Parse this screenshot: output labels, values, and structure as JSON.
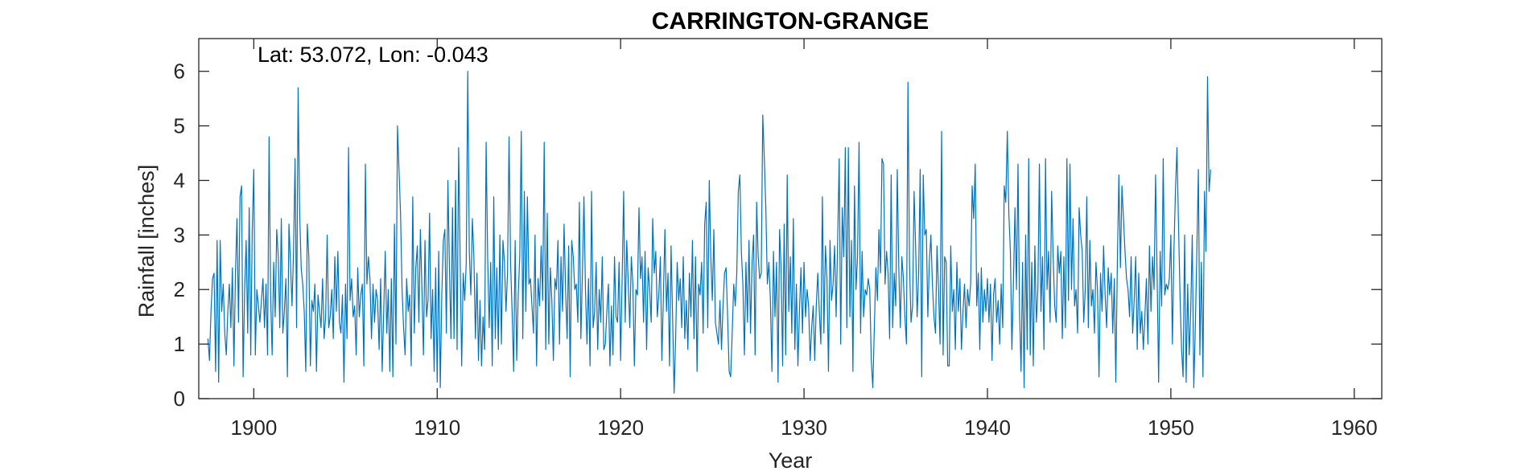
{
  "chart_data": {
    "type": "line",
    "title": "CARRINGTON-GRANGE",
    "annotation": "Lat: 53.072, Lon: -0.043",
    "xlabel": "Year",
    "ylabel": "Rainfall [inches]",
    "xlim": [
      1897,
      1961.5
    ],
    "ylim": [
      0,
      6.6
    ],
    "xticks": [
      1900,
      1910,
      1920,
      1930,
      1940,
      1950,
      1960
    ],
    "xtick_labels": [
      "1900",
      "1910",
      "1920",
      "1930",
      "1940",
      "1950",
      "1960"
    ],
    "yticks": [
      0,
      1,
      2,
      3,
      4,
      5,
      6
    ],
    "ytick_labels": [
      "0",
      "1",
      "2",
      "3",
      "4",
      "5",
      "6"
    ],
    "grid": false,
    "box": true,
    "series": [
      {
        "color": "#0072BD",
        "x_start": 1897.5,
        "x_step": 0.0833333,
        "values": [
          1.1,
          0.7,
          1.6,
          2.2,
          2.3,
          0.5,
          2.9,
          0.3,
          2.9,
          1.6,
          2.1,
          1.2,
          0.8,
          1.6,
          2.1,
          1.3,
          2.4,
          0.6,
          2.3,
          3.3,
          1.4,
          3.7,
          3.9,
          0.4,
          2.0,
          2.9,
          1.2,
          3.5,
          0.8,
          3.1,
          4.2,
          0.8,
          2.0,
          1.7,
          1.4,
          1.8,
          2.2,
          1.3,
          2.1,
          0.8,
          4.8,
          1.9,
          0.8,
          2.5,
          1.5,
          3.1,
          2.6,
          1.3,
          3.3,
          1.2,
          1.6,
          2.2,
          0.4,
          3.2,
          2.5,
          1.7,
          2.7,
          4.4,
          1.3,
          5.7,
          3.4,
          2.4,
          2.1,
          1.6,
          0.5,
          3.2,
          2.6,
          0.6,
          1.8,
          1.6,
          2.1,
          0.5,
          1.9,
          1.6,
          1.3,
          2.2,
          1.1,
          1.5,
          3.0,
          1.3,
          1.5,
          2.0,
          1.1,
          2.6,
          1.6,
          2.7,
          1.4,
          1.2,
          1.9,
          0.3,
          2.1,
          1.1,
          4.6,
          1.8,
          2.2,
          1.5,
          1.7,
          0.8,
          2.4,
          1.5,
          1.9,
          2.1,
          0.6,
          4.3,
          2.1,
          2.6,
          2.2,
          1.1,
          2.1,
          1.4,
          2.0,
          1.8,
          0.9,
          2.2,
          0.5,
          1.6,
          2.7,
          1.2,
          2.0,
          0.5,
          2.2,
          0.4,
          3.2,
          1.0,
          5.0,
          4.2,
          3.4,
          2.0,
          1.3,
          0.8,
          2.2,
          1.6,
          1.9,
          0.6,
          3.7,
          1.2,
          2.4,
          2.8,
          1.4,
          3.1,
          2.0,
          0.8,
          2.9,
          1.5,
          1.8,
          3.4,
          1.1,
          2.0,
          0.5,
          2.4,
          0.3,
          2.7,
          0.2,
          1.9,
          2.9,
          3.1,
          1.2,
          4.0,
          2.4,
          1.1,
          3.5,
          1.1,
          4.0,
          0.9,
          4.6,
          2.6,
          0.6,
          2.3,
          1.8,
          2.5,
          6.0,
          2.7,
          1.9,
          3.3,
          2.6,
          1.1,
          2.3,
          0.7,
          1.8,
          0.6,
          1.5,
          0.9,
          4.7,
          2.6,
          1.3,
          2.5,
          0.6,
          3.7,
          1.1,
          2.4,
          0.9,
          3.0,
          1.0,
          2.9,
          2.5,
          1.6,
          2.3,
          4.8,
          2.5,
          1.6,
          0.5,
          2.9,
          0.7,
          1.9,
          2.6,
          4.9,
          1.1,
          3.8,
          1.6,
          3.7,
          2.1,
          2.2,
          1.7,
          1.2,
          3.0,
          0.6,
          2.2,
          1.7,
          2.8,
          1.8,
          4.7,
          0.9,
          3.4,
          1.0,
          2.4,
          1.8,
          0.7,
          2.2,
          2.0,
          2.9,
          1.0,
          2.6,
          1.6,
          3.2,
          2.0,
          1.1,
          2.8,
          0.4,
          2.9,
          2.6,
          2.0,
          2.1,
          1.4,
          3.6,
          1.1,
          2.3,
          3.7,
          2.0,
          1.0,
          2.2,
          0.6,
          3.8,
          1.3,
          1.6,
          2.5,
          0.9,
          2.0,
          1.4,
          2.6,
          0.9,
          1.0,
          1.6,
          2.1,
          0.6,
          1.7,
          0.8,
          2.6,
          1.5,
          1.4,
          2.5,
          0.7,
          2.2,
          3.8,
          1.4,
          2.9,
          2.1,
          1.3,
          2.6,
          2.1,
          0.6,
          2.0,
          1.9,
          3.5,
          2.2,
          2.6,
          1.4,
          2.7,
          0.9,
          2.4,
          2.0,
          1.4,
          3.3,
          2.3,
          2.7,
          1.5,
          1.9,
          2.6,
          0.7,
          1.9,
          3.1,
          1.6,
          2.3,
          0.6,
          2.8,
          1.5,
          0.1,
          1.1,
          2.5,
          1.8,
          2.2,
          1.3,
          2.6,
          1.1,
          1.8,
          0.9,
          2.3,
          1.5,
          2.9,
          1.1,
          2.6,
          0.5,
          2.1,
          1.9,
          2.5,
          1.2,
          3.2,
          3.6,
          1.3,
          4.0,
          2.6,
          1.8,
          3.1,
          1.4,
          1.2,
          1.0,
          1.8,
          0.9,
          1.7,
          2.3,
          2.4,
          1.5,
          0.5,
          0.4,
          1.2,
          2.1,
          1.7,
          2.3,
          3.8,
          4.1,
          2.7,
          2.1,
          0.8,
          2.5,
          1.4,
          2.9,
          1.2,
          2.5,
          3.0,
          0.8,
          3.6,
          2.6,
          2.2,
          2.3,
          5.2,
          4.4,
          3.5,
          2.1,
          2.5,
          1.8,
          0.5,
          2.7,
          1.5,
          2.5,
          0.3,
          3.1,
          2.4,
          0.6,
          3.2,
          0.8,
          4.1,
          1.6,
          2.6,
          1.2,
          3.3,
          0.9,
          2.1,
          0.6,
          1.6,
          2.4,
          1.2,
          2.5,
          1.5,
          2.0,
          1.7,
          0.7,
          1.3,
          1.7,
          0.7,
          1.7,
          2.3,
          1.6,
          1.0,
          3.7,
          1.2,
          2.8,
          2.2,
          0.5,
          2.9,
          1.8,
          2.1,
          2.8,
          1.5,
          2.9,
          4.4,
          1.0,
          3.5,
          2.6,
          4.6,
          1.3,
          4.6,
          1.5,
          2.9,
          0.5,
          3.9,
          2.0,
          2.6,
          4.7,
          1.2,
          2.7,
          1.5,
          2.0,
          1.9,
          2.2,
          2.0,
          0.7,
          0.2,
          1.3,
          2.4,
          1.8,
          3.1,
          2.3,
          4.4,
          4.3,
          2.1,
          2.7,
          2.3,
          1.1,
          4.1,
          1.3,
          2.3,
          1.7,
          4.2,
          2.4,
          1.3,
          2.6,
          2.2,
          1.5,
          1.0,
          5.8,
          2.5,
          1.4,
          1.7,
          3.8,
          2.8,
          1.5,
          2.3,
          4.2,
          0.4,
          4.1,
          3.0,
          3.1,
          1.5,
          2.5,
          3.0,
          2.1,
          1.5,
          1.2,
          2.8,
          2.0,
          1.0,
          4.9,
          0.8,
          2.6,
          2.5,
          0.6,
          0.6,
          2.8,
          1.6,
          2.0,
          0.9,
          2.5,
          1.6,
          2.2,
          0.9,
          1.6,
          2.1,
          1.3,
          2.0,
          1.7,
          2.1,
          3.9,
          3.3,
          4.3,
          1.7,
          2.3,
          0.9,
          2.4,
          1.4,
          2.0,
          1.6,
          2.2,
          1.4,
          2.1,
          0.7,
          1.9,
          2.2,
          1.4,
          1.8,
          1.0,
          2.1,
          1.3,
          3.9,
          3.6,
          4.9,
          3.4,
          2.7,
          0.9,
          2.1,
          3.5,
          2.0,
          4.3,
          1.6,
          0.5,
          2.5,
          0.2,
          3.0,
          0.9,
          4.4,
          0.8,
          2.5,
          0.6,
          2.8,
          1.4,
          2.0,
          4.3,
          1.6,
          2.6,
          0.9,
          4.4,
          2.0,
          2.7,
          1.4,
          3.8,
          2.6,
          1.7,
          1.4,
          2.8,
          2.3,
          2.7,
          1.1,
          2.6,
          1.3,
          4.4,
          1.8,
          4.3,
          2.0,
          3.3,
          1.7,
          2.0,
          1.2,
          3.5,
          3.0,
          2.7,
          1.4,
          2.0,
          3.7,
          1.3,
          2.9,
          1.7,
          2.0,
          1.2,
          2.5,
          2.0,
          0.4,
          2.3,
          1.6,
          2.8,
          1.9,
          1.3,
          2.4,
          1.9,
          2.3,
          1.2,
          2.2,
          0.3,
          2.5,
          4.1,
          2.4,
          3.9,
          3.3,
          2.7,
          2.2,
          2.0,
          1.5,
          2.6,
          1.2,
          1.8,
          2.6,
          0.9,
          2.3,
          1.2,
          1.6,
          0.9,
          1.5,
          2.2,
          1.0,
          2.8,
          1.6,
          2.6,
          2.0,
          4.1,
          2.3,
          0.3,
          2.7,
          1.7,
          4.4,
          1.9,
          2.1,
          2.0,
          2.2,
          3.0,
          1.0,
          2.7,
          3.8,
          4.6,
          3.2,
          1.9,
          0.9,
          0.4,
          3.0,
          0.3,
          2.1,
          0.8,
          1.6,
          3.0,
          0.2,
          1.3,
          2.7,
          4.2,
          0.8,
          2.5,
          0.4,
          3.8,
          2.7,
          5.9,
          3.8,
          4.2
        ]
      }
    ]
  }
}
